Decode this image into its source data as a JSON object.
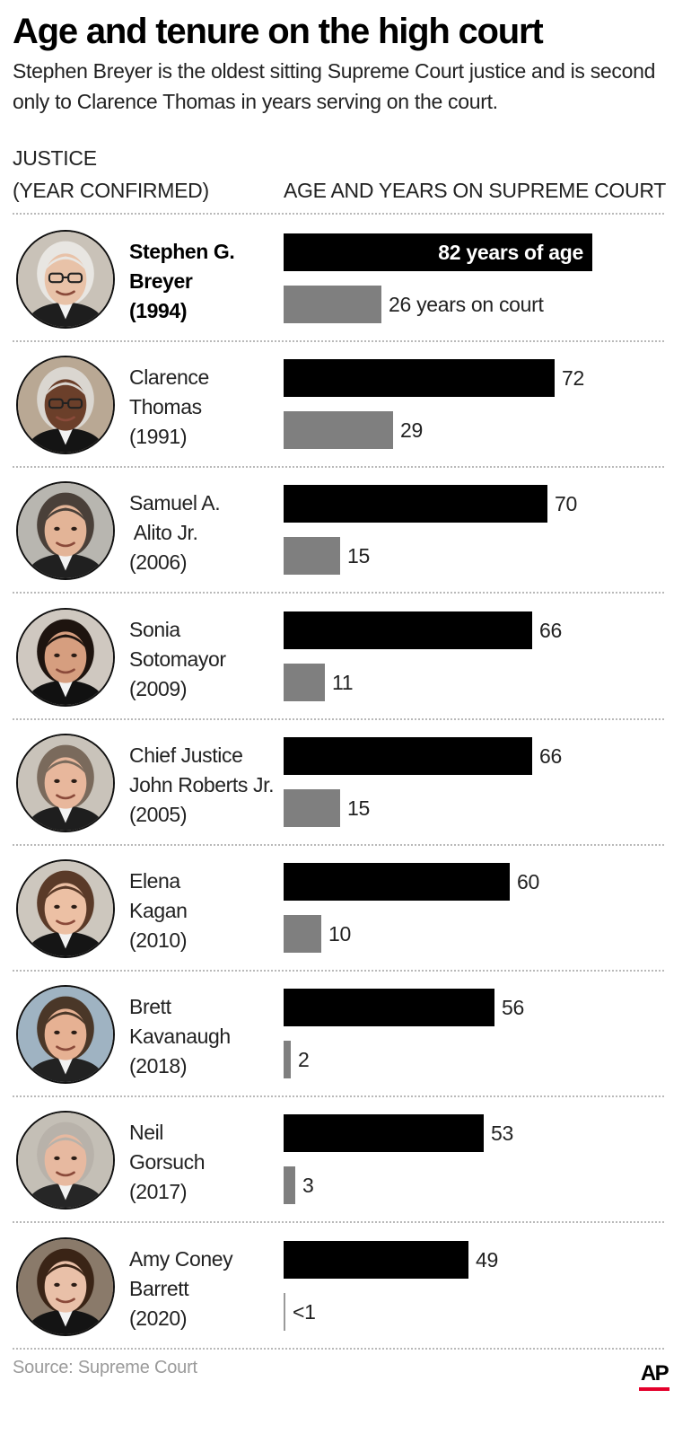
{
  "header": {
    "title": "Age and tenure on the high court",
    "subtitle": "Stephen Breyer is the oldest sitting Supreme Court justice and is second only to Clarence Thomas in years serving on the court."
  },
  "columns": {
    "justice_label": "JUSTICE\n(YEAR CONFIRMED)",
    "bars_label": "AGE AND YEARS ON SUPREME COURT"
  },
  "colors": {
    "age_bar": "#000000",
    "court_bar": "#7f7f7f",
    "accent": "#e4002b"
  },
  "chart_data": {
    "type": "bar",
    "orientation": "horizontal",
    "categories": [
      "Stephen G. Breyer (1994)",
      "Clarence Thomas (1991)",
      "Samuel A. Alito Jr. (2006)",
      "Sonia Sotomayor (2009)",
      "Chief Justice John Roberts Jr. (2005)",
      "Elena Kagan (2010)",
      "Brett Kavanaugh (2018)",
      "Neil Gorsuch (2017)",
      "Amy Coney Barrett (2020)"
    ],
    "series": [
      {
        "values": [
          82,
          72,
          70,
          66,
          66,
          60,
          56,
          53,
          49
        ]
      },
      {
        "values": [
          26,
          29,
          15,
          11,
          15,
          10,
          2,
          3,
          0.5
        ]
      }
    ],
    "xlim": [
      0,
      100
    ],
    "grid": false
  },
  "justices": [
    {
      "name": "Stephen G.\nBreyer\n(1994)",
      "age_label": "82 years of age",
      "court_label": "26 years on court",
      "highlight": true,
      "portrait": "portrait-breyer"
    },
    {
      "name": "Clarence\nThomas\n(1991)",
      "age_label": "72",
      "court_label": "29",
      "highlight": false,
      "portrait": "portrait-thomas"
    },
    {
      "name": "Samuel A.\n Alito Jr.\n(2006)",
      "age_label": "70",
      "court_label": "15",
      "highlight": false,
      "portrait": "portrait-alito"
    },
    {
      "name": "Sonia\nSotomayor\n(2009)",
      "age_label": "66",
      "court_label": "11",
      "highlight": false,
      "portrait": "portrait-sotomayor"
    },
    {
      "name": "Chief Justice\nJohn Roberts Jr.\n(2005)",
      "age_label": "66",
      "court_label": "15",
      "highlight": false,
      "portrait": "portrait-roberts"
    },
    {
      "name": "Elena\nKagan\n(2010)",
      "age_label": "60",
      "court_label": "10",
      "highlight": false,
      "portrait": "portrait-kagan"
    },
    {
      "name": "Brett\nKavanaugh\n(2018)",
      "age_label": "56",
      "court_label": "2",
      "highlight": false,
      "portrait": "portrait-kavanaugh"
    },
    {
      "name": "Neil\nGorsuch\n(2017)",
      "age_label": "53",
      "court_label": "3",
      "highlight": false,
      "portrait": "portrait-gorsuch"
    },
    {
      "name": "Amy Coney\nBarrett\n(2020)",
      "age_label": "49",
      "court_label": "<1",
      "highlight": false,
      "portrait": "portrait-barrett"
    }
  ],
  "footer": {
    "source": "Source: Supreme Court",
    "logo": "AP"
  }
}
